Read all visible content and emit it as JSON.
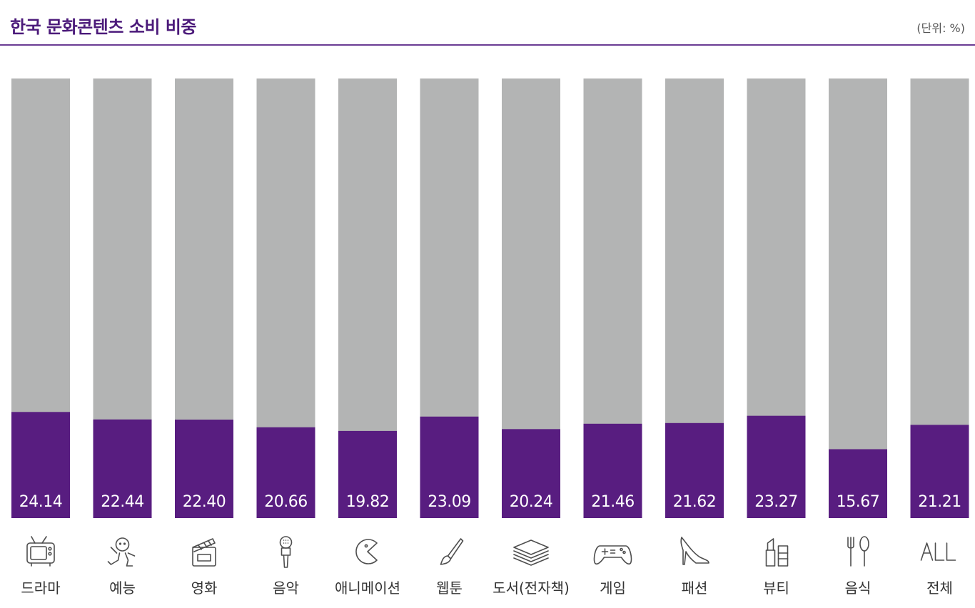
{
  "header": {
    "title": "한국 문화콘텐츠 소비 비중",
    "unit": "(단위: %)"
  },
  "colors": {
    "accent": "#581d80",
    "background_bar": "#b3b4b4",
    "rule": "#6a3c94"
  },
  "chart_data": {
    "type": "bar",
    "title": "한국 문화콘텐츠 소비 비중",
    "unit": "(단위: %)",
    "ylim": [
      0,
      100
    ],
    "categories": [
      "드라마",
      "예능",
      "영화",
      "음악",
      "애니메이션",
      "웹툰",
      "도서(전자책)",
      "게임",
      "패션",
      "뷰티",
      "음식",
      "전체"
    ],
    "values": [
      24.14,
      22.44,
      22.4,
      20.66,
      19.82,
      23.09,
      20.24,
      21.46,
      21.62,
      23.27,
      15.67,
      21.21
    ],
    "icons": [
      "tv-icon",
      "dancing-person-icon",
      "clapperboard-icon",
      "microphone-icon",
      "pacman-icon",
      "paintbrush-icon",
      "book-stack-icon",
      "gamepad-icon",
      "high-heel-icon",
      "cosmetics-icon",
      "fork-spoon-icon",
      "all-text-icon"
    ],
    "grid": false,
    "legend": "none"
  }
}
